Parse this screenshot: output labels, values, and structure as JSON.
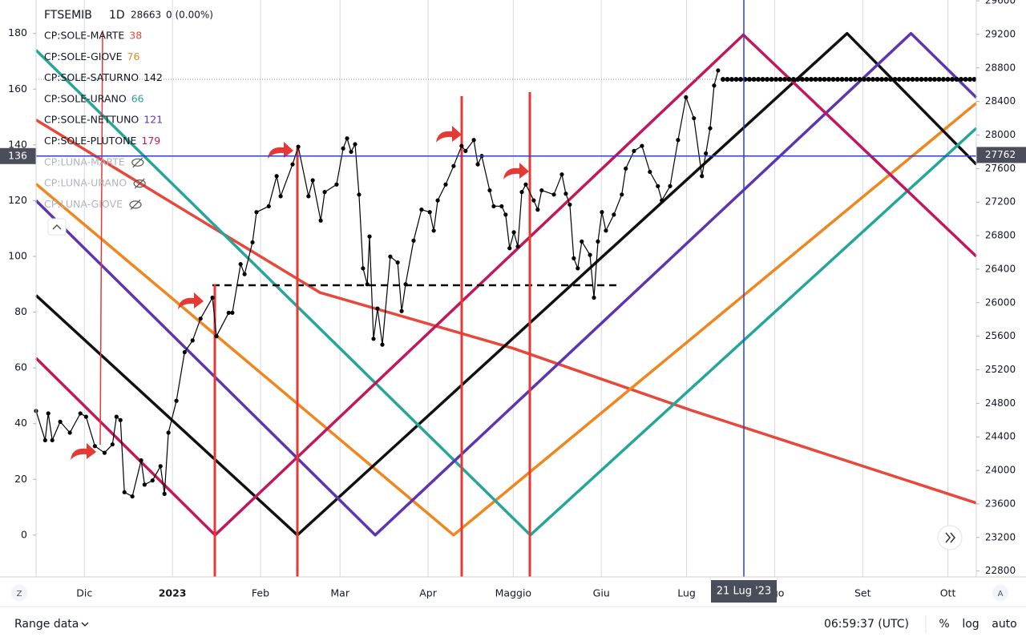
{
  "chart_data": {
    "type": "line",
    "xlim": [
      0,
      331
    ],
    "ylim": [
      -15,
      192
    ],
    "y2lim": [
      22730,
      29610
    ],
    "xticks": [
      {
        "value": 17,
        "label": "Dic"
      },
      {
        "value": 48,
        "label": "2023"
      },
      {
        "value": 79,
        "label": "Feb"
      },
      {
        "value": 107,
        "label": "Mar"
      },
      {
        "value": 138,
        "label": "Apr"
      },
      {
        "value": 168,
        "label": "Maggio"
      },
      {
        "value": 199,
        "label": "Giu"
      },
      {
        "value": 229,
        "label": "Lug"
      },
      {
        "value": 260,
        "label": "Ago"
      },
      {
        "value": 291,
        "label": "Set"
      },
      {
        "value": 321,
        "label": "Ott"
      }
    ],
    "yticks": [
      0,
      20,
      40,
      60,
      80,
      100,
      120,
      140,
      160,
      180
    ],
    "y2ticks": [
      22800,
      23200,
      23600,
      24000,
      24400,
      24800,
      25200,
      25600,
      26000,
      26400,
      26800,
      27200,
      27600,
      28000,
      28400,
      28800,
      29200,
      29600
    ],
    "grid": "x",
    "series": [
      {
        "name": "CP:SOLE-MARTE",
        "legend_value": 38,
        "color": "#e8473b",
        "x": [
          0,
          46.6,
          100,
          168,
          230,
          331
        ],
        "values": [
          149,
          120,
          87,
          67,
          45,
          11.5
        ]
      },
      {
        "name": "CP:SOLE-GIOVE",
        "legend_value": 76,
        "color": "#f0861d",
        "x": [
          0,
          147,
          331
        ],
        "values": [
          126,
          0,
          155
        ]
      },
      {
        "name": "CP:SOLE-SATURNO",
        "legend_value": 142,
        "color": "#111111",
        "x": [
          0,
          92,
          285.5,
          331
        ],
        "values": [
          86,
          0,
          180,
          133
        ]
      },
      {
        "name": "CP:SOLE-URANO",
        "legend_value": 66,
        "color": "#26a69a",
        "x": [
          0,
          174,
          331
        ],
        "values": [
          174,
          0,
          146
        ]
      },
      {
        "name": "CP:SOLE-NETTUNO",
        "legend_value": 121,
        "color": "#5e35b1",
        "x": [
          0,
          119.4,
          308,
          331
        ],
        "values": [
          120,
          0,
          180,
          157
        ]
      },
      {
        "name": "CP:SOLE-PLUTONE",
        "legend_value": 179,
        "color": "#c2185b",
        "x": [
          0,
          63,
          249,
          331
        ],
        "values": [
          63.5,
          0,
          179.5,
          100
        ]
      },
      {
        "name": "FTSEMIB",
        "axis": "y2",
        "color": "#000000",
        "x": [
          0,
          3.2,
          4.3,
          5.7,
          8.5,
          11.9,
          15.6,
          17.6,
          20.7,
          24.1,
          26.9,
          28.3,
          29.7,
          31.1,
          33.9,
          37,
          38.2,
          41,
          43.8,
          45.2,
          46.6,
          49.4,
          52.3,
          55.1,
          57.9,
          62.1,
          63.5,
          67.8,
          69.1,
          72,
          73.4,
          76.2,
          77.6,
          81.9,
          84.7,
          86.1,
          90.3,
          92.3,
          95.9,
          97.4,
          100.2,
          101.6,
          105.8,
          108.1,
          109.5,
          110.9,
          112.3,
          113.7,
          115.1,
          116.6,
          117.4,
          118.8,
          120.2,
          121.9,
          124.7,
          127.3,
          128.7,
          130.1,
          132.9,
          135.7,
          138.6,
          140,
          141.4,
          144.2,
          147,
          149.8,
          151.2,
          154.1,
          155.5,
          156.9,
          159.7,
          161.1,
          163.9,
          165.3,
          166.7,
          168.2,
          169.6,
          171,
          172.4,
          175.2,
          176.6,
          178,
          182.3,
          185.1,
          186.5,
          187.9,
          189.3,
          190.7,
          192.1,
          195,
          196.4,
          197.8,
          199.2,
          200.6,
          203.4,
          206.2,
          207.6,
          210.5,
          213.3,
          216.1,
          218.9,
          220.3,
          223.2,
          226,
          228.8,
          231.6,
          234.4,
          235.8,
          237.3,
          238.7,
          240.1
        ],
        "values": [
          24710,
          24360,
          24680,
          24360,
          24580,
          24450,
          24680,
          24640,
          24290,
          24210,
          24310,
          24640,
          24600,
          23740,
          23690,
          24120,
          23830,
          23880,
          24050,
          23720,
          24450,
          24830,
          25410,
          25550,
          25810,
          26060,
          25600,
          25880,
          25880,
          26460,
          26340,
          26720,
          27080,
          27150,
          27510,
          27270,
          27650,
          27860,
          27270,
          27460,
          26980,
          27320,
          27410,
          27840,
          27960,
          27800,
          27890,
          27290,
          26410,
          26220,
          26790,
          25570,
          25930,
          25500,
          26550,
          26480,
          25900,
          26220,
          26740,
          27110,
          27080,
          26860,
          27220,
          27410,
          27630,
          27870,
          27810,
          27940,
          27650,
          27750,
          27340,
          27150,
          27150,
          27050,
          26650,
          26840,
          26670,
          27320,
          27410,
          27220,
          27110,
          27340,
          27290,
          27530,
          27300,
          27170,
          26530,
          26410,
          26730,
          26570,
          26060,
          26730,
          27080,
          26860,
          27050,
          27290,
          27600,
          27810,
          27870,
          27560,
          27390,
          27220,
          27390,
          27940,
          28450,
          28200,
          27510,
          27780,
          28080,
          28590,
          28770
        ]
      }
    ],
    "hidden_series": [
      "CP:LUNA-MARTE",
      "CP:LUNA-URANO",
      "CP:LUNA-GIOVE"
    ],
    "crosshair": {
      "y": 136,
      "y2": 27762,
      "x_label": "21 Lug '23"
    }
  },
  "header": {
    "interval": "1D",
    "last": 28663,
    "change": "0 (0.00%)"
  },
  "footer": {
    "range": "Range data",
    "time": "06:59:37 (UTC)",
    "percent": "%",
    "log": "log",
    "auto": "auto",
    "left_button": "Z",
    "right_button": "A"
  }
}
